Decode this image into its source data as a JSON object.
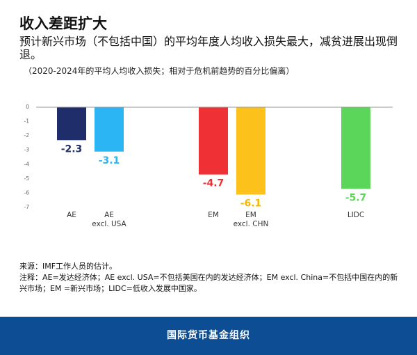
{
  "title": "收入差距扩大",
  "subtitle": "预计新兴市场（不包括中国）的平均年度人均收入损失最大，减贫进展出现倒退。",
  "chart_data": {
    "type": "bar",
    "title": "（2020-2024年的平均人均收入损失；相对于危机前趋势的百分比偏离）",
    "categories": [
      "AE",
      "AE\nexcl. USA",
      "EM",
      "EM\nexcl. CHN",
      "LIDC"
    ],
    "values": [
      -2.3,
      -3.1,
      -4.7,
      -6.1,
      -5.7
    ],
    "colors": [
      "#1f2d6b",
      "#2bb5f5",
      "#ef3035",
      "#fcc21b",
      "#5cd65a"
    ],
    "label_colors": [
      "#1f2d6b",
      "#2bb5f5",
      "#ef3035",
      "#f5b800",
      "#5cd65a"
    ],
    "ylim": [
      -7,
      0
    ],
    "yticks": [
      0,
      -1,
      -2,
      -3,
      -4,
      -5,
      -6,
      -7
    ]
  },
  "source": "来源：IMF工作人员的估计。",
  "note": "注释：AE=发达经济体；AE excl. USA=不包括美国在内的发达经济体；EM excl. China=不包括中国在内的新兴市场；EM =新兴市场；LIDC=低收入发展中国家。",
  "footer": "国际货币基金组织"
}
